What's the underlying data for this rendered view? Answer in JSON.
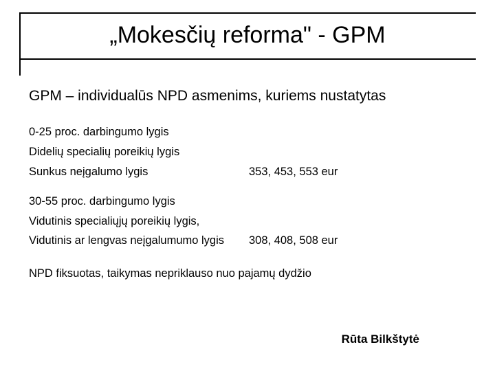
{
  "title": "„Mokesčių reforma\" - GPM",
  "intro": "GPM – individualūs NPD  asmenims, kuriems nustatytas",
  "group1": {
    "line1": "0-25 proc. darbingumo lygis",
    "line2": "Didelių specialių poreikių lygis",
    "line3_label": "Sunkus neįgalumo lygis",
    "line3_value": "353, 453, 553 eur"
  },
  "group2": {
    "line1": "30-55 proc. darbingumo lygis",
    "line2": "Vidutinis specialiųjų poreikių lygis,",
    "line3_label": "Vidutinis ar lengvas neįgalumumo lygis",
    "line3_value": "308, 408, 508 eur"
  },
  "note": "NPD fiksuotas, taikymas nepriklauso nuo pajamų dydžio",
  "author": "Rūta Bilkštytė",
  "colors": {
    "text": "#000000",
    "background": "#ffffff",
    "rule": "#000000"
  }
}
